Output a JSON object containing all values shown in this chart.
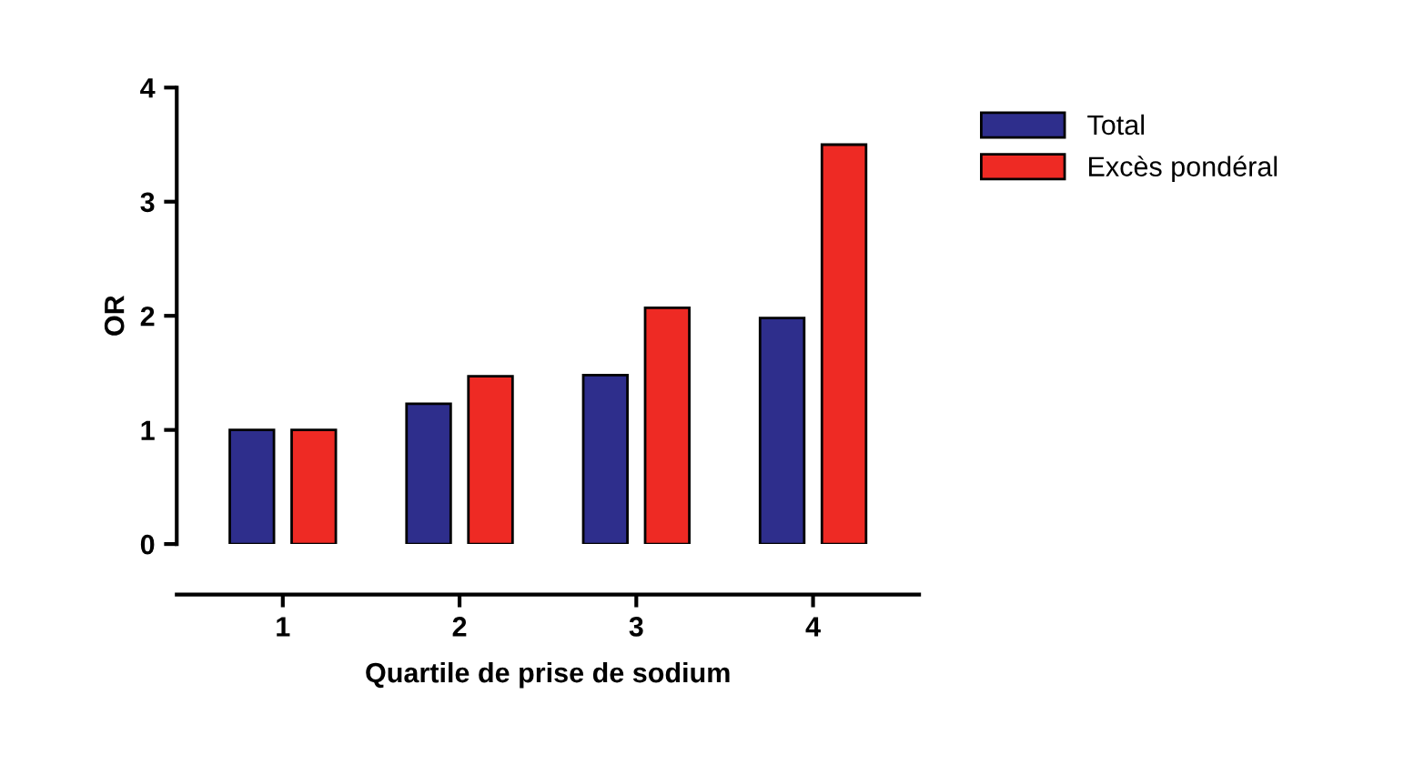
{
  "chart_data": {
    "type": "bar",
    "xlabel": "Quartile de prise de sodium",
    "ylabel": "OR",
    "categories": [
      "1",
      "2",
      "3",
      "4"
    ],
    "series": [
      {
        "name": "Total",
        "color": "#2e2e8c",
        "values": [
          1.0,
          1.23,
          1.48,
          1.98
        ]
      },
      {
        "name": "Excès pondéral",
        "color": "#ee2a24",
        "values": [
          1.0,
          1.47,
          2.07,
          3.5
        ]
      }
    ],
    "ylim": [
      0,
      4
    ],
    "yticks": [
      0,
      1,
      2,
      3,
      4
    ],
    "grid": false,
    "legend": "top right"
  }
}
